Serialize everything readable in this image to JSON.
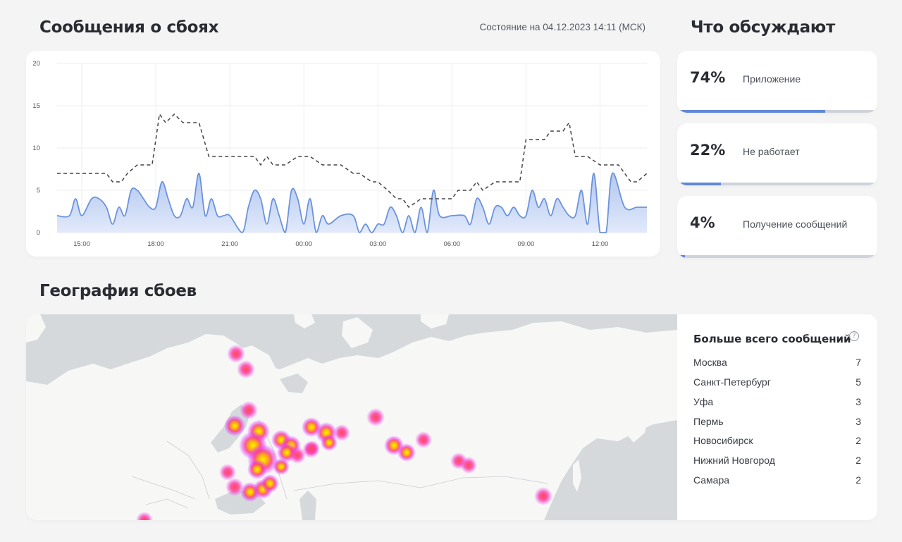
{
  "header": {
    "title": "Сообщения о сбоях",
    "status": "Состояние на 04.12.2023 14:11 (МСК)",
    "topics_title": "Что обсуждают",
    "geo_title": "География сбоев"
  },
  "chart_data": {
    "type": "area",
    "xlabel": "",
    "ylabel": "",
    "ylim": [
      0,
      20
    ],
    "yticks": [
      "0",
      "5",
      "10",
      "15",
      "20"
    ],
    "xticks": [
      "15:00",
      "18:00",
      "21:00",
      "00:00",
      "03:00",
      "06:00",
      "09:00",
      "12:00"
    ],
    "grid": true,
    "x_range_hours": [
      14.0,
      37.9
    ],
    "series": [
      {
        "name": "",
        "style": "area",
        "color": "#6b93dc",
        "x": [
          14.0,
          14.5,
          14.75,
          15.0,
          15.4,
          15.7,
          16.0,
          16.25,
          16.5,
          16.75,
          17.0,
          17.25,
          17.5,
          17.75,
          18.0,
          18.25,
          18.5,
          18.75,
          19.0,
          19.25,
          19.5,
          19.75,
          20.0,
          20.25,
          20.5,
          20.75,
          21.0,
          21.5,
          21.75,
          22.0,
          22.25,
          22.5,
          22.75,
          23.0,
          23.25,
          23.5,
          23.75,
          24.0,
          24.25,
          24.5,
          24.75,
          25.0,
          25.5,
          26.0,
          26.25,
          26.5,
          26.75,
          27.0,
          27.25,
          27.5,
          27.75,
          28.0,
          28.25,
          28.5,
          28.75,
          29.0,
          29.25,
          29.5,
          30.0,
          30.5,
          30.75,
          31.0,
          31.25,
          31.5,
          31.75,
          32.0,
          32.25,
          32.5,
          32.75,
          33.0,
          33.25,
          33.5,
          33.75,
          34.0,
          34.25,
          34.5,
          34.75,
          35.0,
          35.25,
          35.5,
          35.75,
          36.0,
          36.25,
          36.5,
          37.0,
          37.5,
          37.9
        ],
        "values": [
          2,
          2,
          4,
          2,
          4,
          4,
          3,
          1,
          3,
          2,
          5,
          5,
          4,
          3,
          3,
          6,
          4,
          2,
          2,
          4,
          3,
          7,
          2,
          4,
          2,
          2,
          2,
          0,
          3,
          5,
          4,
          1,
          4,
          2,
          0,
          5,
          4,
          1,
          4,
          0,
          2,
          1,
          2,
          2,
          0,
          1,
          0,
          1,
          1,
          3,
          2,
          0,
          2,
          0,
          3,
          0,
          5,
          2,
          2,
          2,
          1,
          4,
          3,
          1,
          3,
          3,
          2,
          3,
          2,
          2,
          5,
          3,
          4,
          2,
          4,
          3,
          2,
          2,
          5,
          1,
          7,
          0,
          0,
          7,
          3,
          3,
          3
        ]
      },
      {
        "name": "",
        "style": "dashed-line",
        "color": "#444444",
        "x": [
          14.0,
          16.0,
          16.25,
          16.6,
          16.85,
          17.25,
          17.6,
          17.85,
          18.15,
          18.4,
          18.75,
          19.1,
          19.4,
          19.75,
          20.15,
          20.5,
          21.0,
          21.5,
          22.0,
          22.25,
          22.5,
          22.75,
          23.25,
          23.75,
          24.25,
          24.75,
          25.25,
          25.5,
          26.0,
          26.25,
          26.75,
          27.0,
          27.4,
          27.75,
          28.0,
          28.25,
          28.75,
          29.25,
          29.75,
          30.0,
          30.25,
          30.75,
          31.0,
          31.25,
          31.75,
          32.0,
          32.25,
          32.75,
          33.0,
          33.5,
          33.75,
          34.0,
          34.25,
          34.5,
          34.75,
          35.0,
          35.25,
          35.5,
          36.0,
          36.25,
          36.75,
          37.0,
          37.25,
          37.5,
          37.9
        ],
        "values": [
          7,
          7,
          6,
          6,
          7,
          8,
          8,
          8,
          14,
          13,
          14,
          13,
          13,
          13,
          9,
          9,
          9,
          9,
          9,
          8,
          9,
          8,
          8,
          9,
          9,
          8,
          8,
          8,
          7,
          7,
          6,
          6,
          5,
          4,
          4,
          3,
          4,
          4,
          4,
          4,
          5,
          5,
          6,
          5,
          6,
          6,
          6,
          6,
          11,
          11,
          11,
          12,
          12,
          12,
          13,
          9,
          9,
          9,
          8,
          8,
          8,
          7,
          6,
          6,
          7
        ]
      }
    ]
  },
  "topics": [
    {
      "percent": "74%",
      "label": "Приложение",
      "fill": 0.74
    },
    {
      "percent": "22%",
      "label": "Не работает",
      "fill": 0.22
    },
    {
      "percent": "4%",
      "label": "Получение сообщений",
      "fill": 0.04
    }
  ],
  "map": {
    "land_color": "#f7f7f6",
    "water_color": "#d6d9dc",
    "hotspot_color_outer": "#d93cff",
    "hotspot_color_inner": "#ffe000"
  },
  "cities": {
    "title": "Больше всего сообщений",
    "help_icon": "question-circle-icon",
    "items": [
      {
        "name": "Москва",
        "count": "7"
      },
      {
        "name": "Санкт-Петербург",
        "count": "5"
      },
      {
        "name": "Уфа",
        "count": "3"
      },
      {
        "name": "Пермь",
        "count": "3"
      },
      {
        "name": "Новосибирск",
        "count": "2"
      },
      {
        "name": "Нижний Новгород",
        "count": "2"
      },
      {
        "name": "Самара",
        "count": "2"
      }
    ]
  }
}
